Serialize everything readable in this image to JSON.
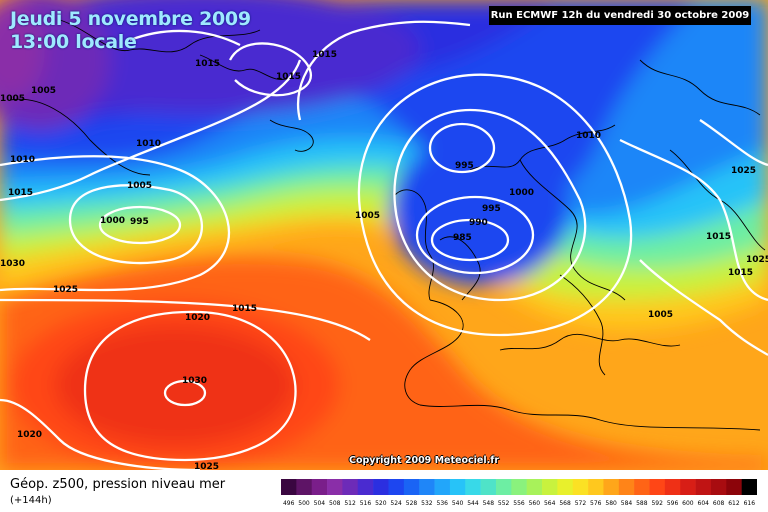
{
  "header": {
    "date": "Jeudi 5 novembre 2009",
    "time": "13:00 locale",
    "run": "Run ECMWF 12h du vendredi 30 octobre 2009"
  },
  "copyright": "Copyright 2009 Meteociel.fr",
  "legend": {
    "title": "Géop. z500, pression niveau mer",
    "subtitle": "(+144h)",
    "scale_values": [
      "496",
      "500",
      "504",
      "508",
      "512",
      "516",
      "520",
      "524",
      "528",
      "532",
      "536",
      "540",
      "544",
      "548",
      "552",
      "556",
      "560",
      "564",
      "568",
      "572",
      "576",
      "580",
      "584",
      "588",
      "592",
      "596",
      "600",
      "604",
      "608",
      "612",
      "616"
    ],
    "scale_colors": [
      "#3a0640",
      "#5e1466",
      "#7a1e8a",
      "#8a2ea8",
      "#6d2bb8",
      "#4a2bd0",
      "#2b2fe0",
      "#1d46f0",
      "#1a64f5",
      "#1f86f8",
      "#22a6fa",
      "#27c3f8",
      "#38d9e8",
      "#4fe3c8",
      "#6deea3",
      "#8af27d",
      "#a8f25a",
      "#c8f23e",
      "#e8f02c",
      "#fbe124",
      "#ffc81e",
      "#ffa61a",
      "#ff8418",
      "#ff6416",
      "#ff4616",
      "#ef3016",
      "#d81e16",
      "#c01414",
      "#a80c10",
      "#8c040a",
      "#000000"
    ]
  },
  "isobars": [
    {
      "label": "1015",
      "type": "isobar"
    },
    {
      "label": "1015",
      "type": "isobar"
    },
    {
      "label": "1015",
      "type": "isobar"
    },
    {
      "label": "1005",
      "type": "isobar"
    },
    {
      "label": "1005",
      "type": "isobar"
    },
    {
      "label": "1010",
      "type": "isobar"
    },
    {
      "label": "1010",
      "type": "isobar"
    },
    {
      "label": "1005",
      "type": "isobar"
    },
    {
      "label": "1015",
      "type": "isobar"
    },
    {
      "label": "1000",
      "type": "isobar"
    },
    {
      "label": "995",
      "type": "isobar"
    },
    {
      "label": "1030",
      "type": "isobar"
    },
    {
      "label": "1025",
      "type": "isobar"
    },
    {
      "label": "1020",
      "type": "isobar"
    },
    {
      "label": "1015",
      "type": "isobar"
    },
    {
      "label": "1020",
      "type": "isobar"
    },
    {
      "label": "1005",
      "type": "isobar"
    },
    {
      "label": "995",
      "type": "isobar"
    },
    {
      "label": "995",
      "type": "isobar"
    },
    {
      "label": "1000",
      "type": "isobar"
    },
    {
      "label": "990",
      "type": "isobar"
    },
    {
      "label": "985",
      "type": "isobar"
    },
    {
      "label": "1010",
      "type": "isobar"
    },
    {
      "label": "1025",
      "type": "isobar"
    },
    {
      "label": "1015",
      "type": "isobar"
    },
    {
      "label": "1015",
      "type": "isobar"
    },
    {
      "label": "1005",
      "type": "isobar"
    },
    {
      "label": "1025",
      "type": "isobar"
    },
    {
      "label": "1030",
      "type": "isobar"
    },
    {
      "label": "1025",
      "type": "isobar"
    }
  ]
}
